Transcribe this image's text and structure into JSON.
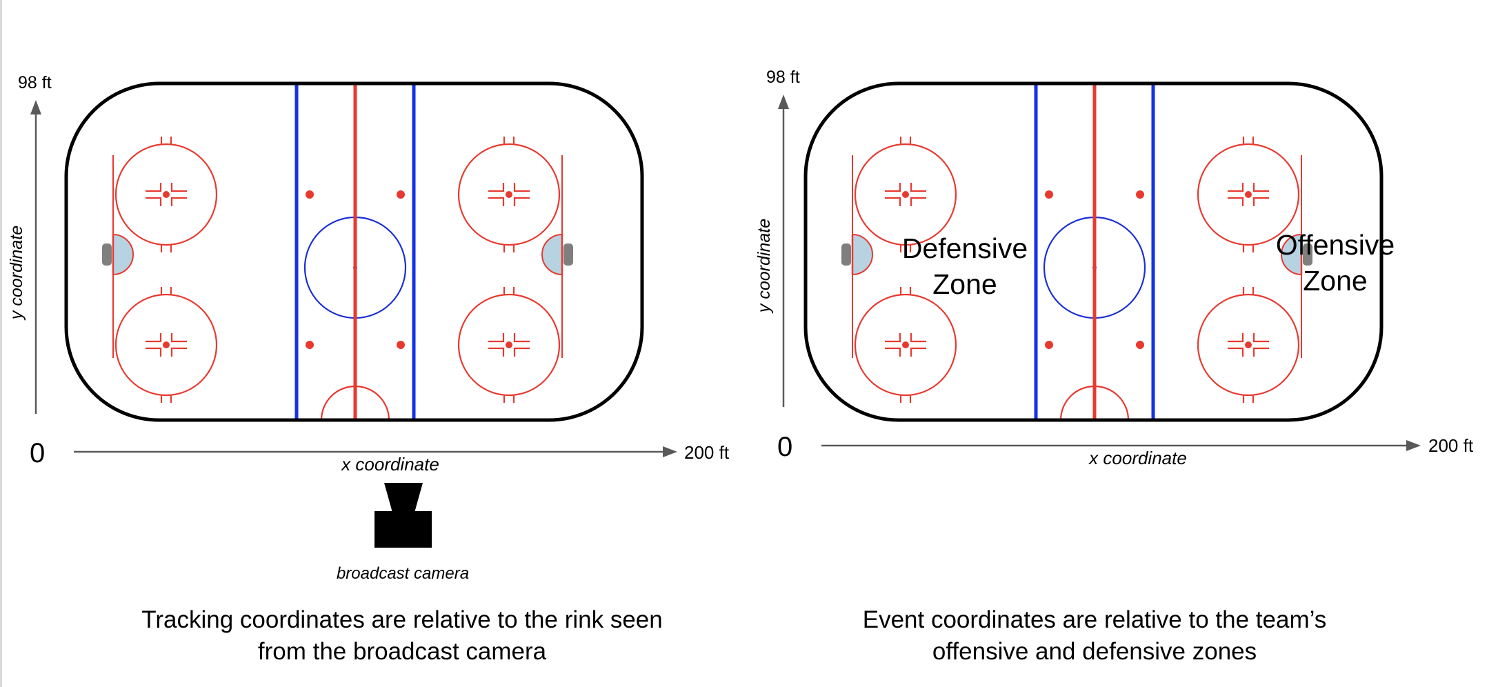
{
  "left_panel": {
    "axis": {
      "y_max_label": "98 ft",
      "y_label": "y coordinate",
      "origin_label": "0",
      "x_label": "x coordinate",
      "x_max_label": "200 ft"
    },
    "camera_label": "broadcast camera",
    "caption": {
      "line1": "Tracking coordinates are relative to the rink seen",
      "line2": "from the broadcast camera"
    }
  },
  "right_panel": {
    "axis": {
      "y_max_label": "98 ft",
      "y_label": "y coordinate",
      "origin_label": "0",
      "x_label": "x coordinate",
      "x_max_label": "200 ft"
    },
    "zones": {
      "defensive_line1": "Defensive",
      "defensive_line2": "Zone",
      "offensive_line1": "Offensive",
      "offensive_line2": "Zone"
    },
    "caption": {
      "line1": "Event coordinates are relative to the team’s",
      "line2": "offensive and defensive zones"
    }
  },
  "colors": {
    "board": "#000000",
    "red_line": "#e8392f",
    "blue_line": "#1432e6",
    "center_circle": "#1a2fd6",
    "crease": "#b7d3e2",
    "net": "#7f7f7f",
    "axis": "#595959"
  }
}
